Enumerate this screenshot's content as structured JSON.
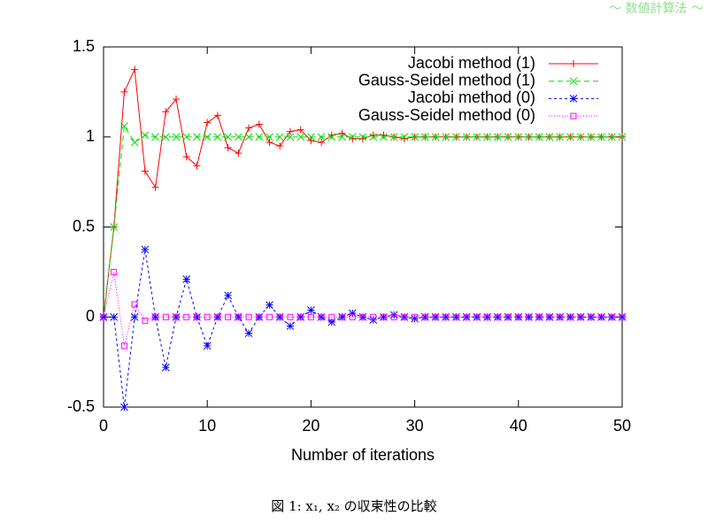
{
  "header": "～ 数値計算法 ～",
  "caption": "図 1: x₁, x₂ の収束性の比較",
  "chart_data": {
    "type": "line",
    "x_label": "Number of iterations",
    "x": [
      0,
      1,
      2,
      3,
      4,
      5,
      6,
      7,
      8,
      9,
      10,
      11,
      12,
      13,
      14,
      15,
      16,
      17,
      18,
      19,
      20,
      21,
      22,
      23,
      24,
      25,
      26,
      27,
      28,
      29,
      30,
      31,
      32,
      33,
      34,
      35,
      36,
      37,
      38,
      39,
      40,
      41,
      42,
      43,
      44,
      45,
      46,
      47,
      48,
      49,
      50
    ],
    "xlim": [
      0,
      50
    ],
    "xticks": [
      0,
      10,
      20,
      30,
      40,
      50
    ],
    "ylim": [
      -0.5,
      1.5
    ],
    "yticks": [
      -0.5,
      0,
      0.5,
      1,
      1.5
    ],
    "legend": "top-right",
    "series": [
      {
        "name": "Jacobi method (1)",
        "color": "#ff0000",
        "marker": "plus",
        "dash": "none",
        "values": [
          0,
          0.5,
          1.25,
          1.375,
          0.81,
          0.72,
          1.14,
          1.21,
          0.89,
          0.84,
          1.08,
          1.12,
          0.94,
          0.91,
          1.05,
          1.07,
          0.97,
          0.95,
          1.03,
          1.04,
          0.98,
          0.97,
          1.01,
          1.02,
          0.99,
          0.99,
          1.01,
          1.01,
          1,
          0.99,
          1,
          1,
          1,
          1,
          1,
          1,
          1,
          1,
          1,
          1,
          1,
          1,
          1,
          1,
          1,
          1,
          1,
          1,
          1,
          1,
          1
        ]
      },
      {
        "name": "Gauss-Seidel method (1)",
        "color": "#00dd00",
        "marker": "cross",
        "dash": "6,4",
        "values": [
          0,
          0.5,
          1.06,
          0.97,
          1.01,
          1,
          1,
          1,
          1,
          1,
          1,
          1,
          1,
          1,
          1,
          1,
          1,
          1,
          1,
          1,
          1,
          1,
          1,
          1,
          1,
          1,
          1,
          1,
          1,
          1,
          1,
          1,
          1,
          1,
          1,
          1,
          1,
          1,
          1,
          1,
          1,
          1,
          1,
          1,
          1,
          1,
          1,
          1,
          1,
          1,
          1
        ]
      },
      {
        "name": "Jacobi method (0)",
        "color": "#0000ff",
        "marker": "star",
        "dash": "3,3",
        "values": [
          0,
          0,
          -0.5,
          0,
          0.375,
          0,
          -0.28,
          0,
          0.21,
          0,
          -0.16,
          0,
          0.12,
          0,
          -0.09,
          0,
          0.067,
          0,
          -0.05,
          0,
          0.038,
          0,
          -0.028,
          0,
          0.021,
          0,
          -0.016,
          0,
          0.012,
          0,
          -0.009,
          0,
          0,
          0,
          0,
          0,
          0,
          0,
          0,
          0,
          0,
          0,
          0,
          0,
          0,
          0,
          0,
          0,
          0,
          0,
          0
        ]
      },
      {
        "name": "Gauss-Seidel method (0)",
        "color": "#ff00ff",
        "marker": "square",
        "dash": "1,2",
        "values": [
          0,
          0.25,
          -0.16,
          0.07,
          -0.02,
          0,
          0,
          0,
          0,
          0,
          0,
          0,
          0,
          0,
          0,
          0,
          0,
          0,
          0,
          0,
          0,
          0,
          0,
          0,
          0,
          0,
          0,
          0,
          0,
          0,
          0,
          0,
          0,
          0,
          0,
          0,
          0,
          0,
          0,
          0,
          0,
          0,
          0,
          0,
          0,
          0,
          0,
          0,
          0,
          0,
          0
        ]
      }
    ]
  }
}
